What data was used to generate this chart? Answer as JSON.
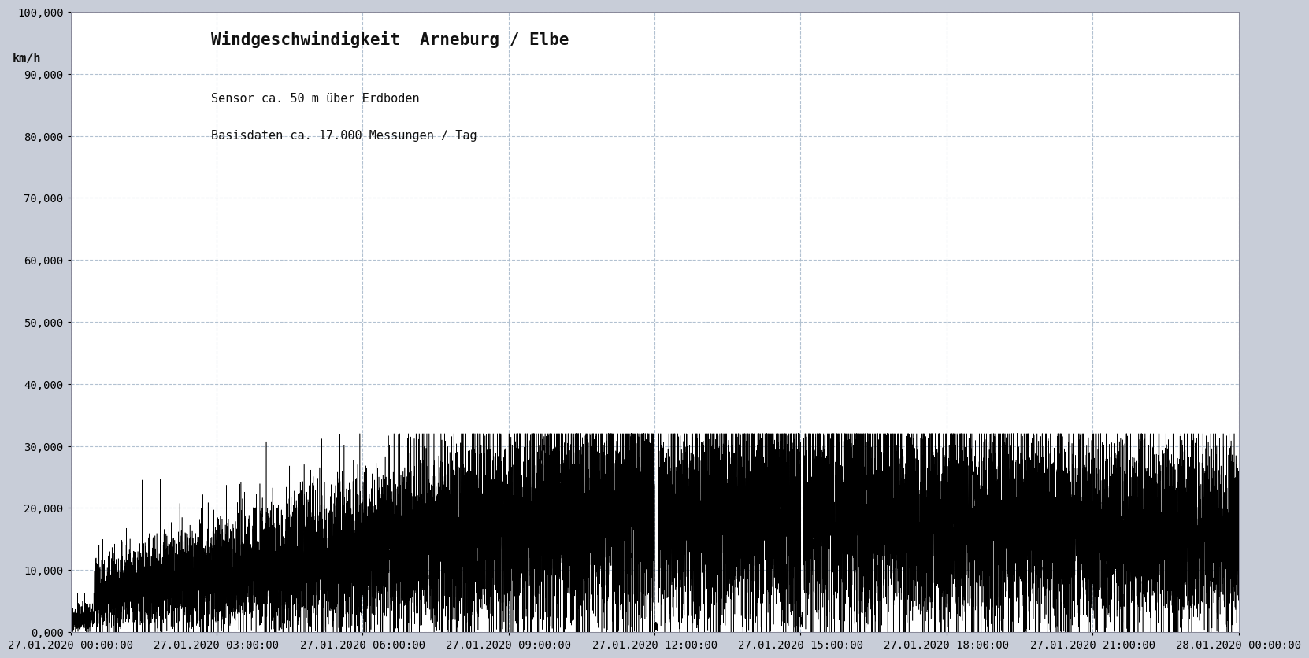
{
  "title": "Windgeschwindigkeit  Arneburg / Elbe",
  "subtitle_line1": "Sensor ca. 50 m über Erdboden",
  "subtitle_line2": "Basisdaten ca. 17.000 Messungen / Tag",
  "ylabel": "km/h",
  "ylim": [
    0,
    100000
  ],
  "yticks": [
    0,
    10000,
    20000,
    30000,
    40000,
    50000,
    60000,
    70000,
    80000,
    90000,
    100000
  ],
  "xtick_labels": [
    "27.01.2020 00:00:00",
    "27.01.2020 03:00:00",
    "27.01.2020 06:00:00",
    "27.01.2020 09:00:00",
    "27.01.2020 12:00:00",
    "27.01.2020 15:00:00",
    "27.01.2020 18:00:00",
    "27.01.2020 21:00:00",
    "28.01.2020 00:00:00"
  ],
  "line_color": "#000000",
  "line_width": 0.4,
  "fig_bg_color": "#c8cdd8",
  "plot_bg_color": "#ffffff",
  "grid_color": "#aabbcc",
  "title_fontsize": 15,
  "subtitle_fontsize": 11,
  "tick_fontsize": 10,
  "num_points": 17280,
  "seed": 42
}
